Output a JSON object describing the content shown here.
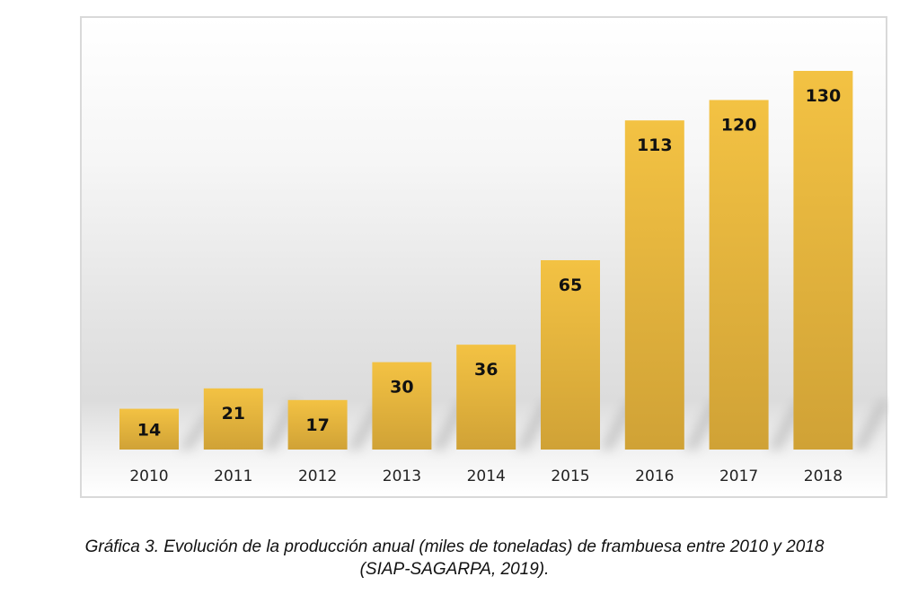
{
  "chart_data": {
    "type": "bar",
    "title": "",
    "xlabel": "",
    "ylabel": "",
    "categories": [
      "2010",
      "2011",
      "2012",
      "2013",
      "2014",
      "2015",
      "2016",
      "2017",
      "2018"
    ],
    "values": [
      14,
      21,
      17,
      30,
      36,
      65,
      113,
      120,
      130
    ],
    "data_labels": [
      "14",
      "21",
      "17",
      "30",
      "36",
      "65",
      "113",
      "120",
      "130"
    ],
    "ylim": [
      0,
      130
    ],
    "grid": false,
    "legend": "none",
    "y_axis_visible": false,
    "bar_color_top": "#f3c243",
    "bar_color_bottom": "#d0a236",
    "units": "miles de toneladas"
  },
  "caption": {
    "line1": "Gráfica 3. Evolución de la producción anual (miles de toneladas) de frambuesa entre 2010 y 2018",
    "line2": "(SIAP-SAGARPA, 2019)."
  }
}
